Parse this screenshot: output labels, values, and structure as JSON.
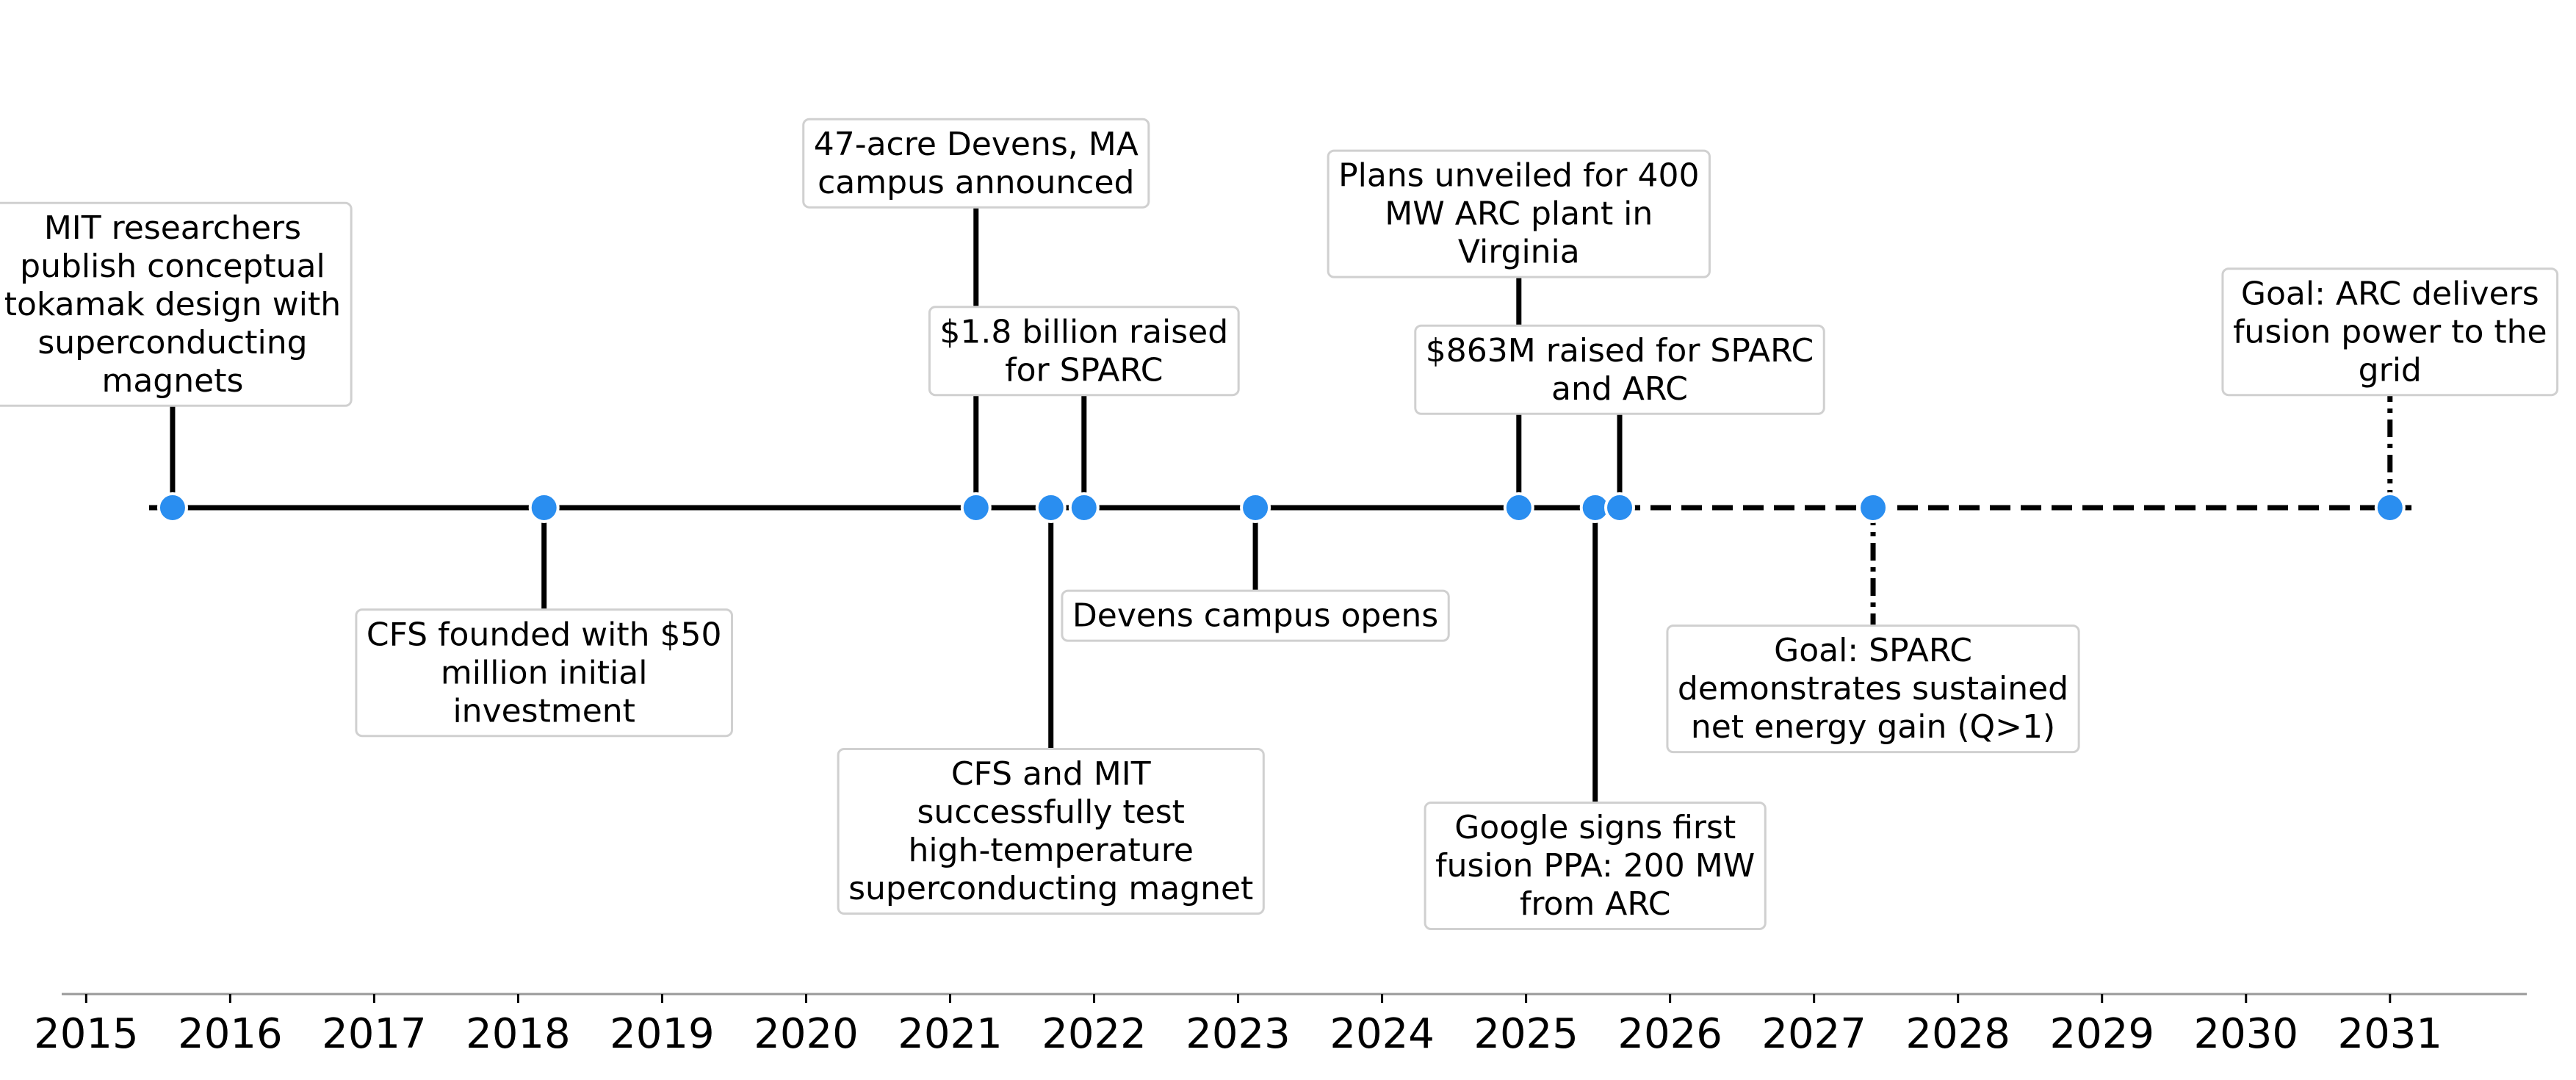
{
  "chart_data": {
    "type": "timeline",
    "title": "",
    "xlabel": "",
    "ylabel": "",
    "x_ticks": [
      "2015",
      "2016",
      "2017",
      "2018",
      "2019",
      "2020",
      "2021",
      "2022",
      "2023",
      "2024",
      "2025",
      "2026",
      "2027",
      "2028",
      "2029",
      "2030",
      "2031"
    ],
    "xlim": [
      2014.83,
      2031.95
    ],
    "grid": false,
    "colors": {
      "marker": "#2a8ef0",
      "marker_edge": "#ffffff",
      "line": "#000000",
      "box_border": "#d0d0d0",
      "axis": "#999999"
    },
    "events": [
      {
        "x": 2015.6,
        "text": [
          "MIT researchers",
          "publish conceptual",
          "tokamak design with",
          "superconducting",
          "magnets"
        ],
        "side": "above",
        "height": 1.9
      },
      {
        "x": 2018.18,
        "text": [
          "CFS founded with $50",
          "million initial",
          "investment"
        ],
        "side": "below",
        "height": 1.9
      },
      {
        "x": 2021.18,
        "text": [
          "47-acre Devens, MA",
          "campus announced"
        ],
        "side": "above",
        "height": 5.6
      },
      {
        "x": 2021.7,
        "text": [
          "CFS and MIT",
          "successfully test",
          "high-temperature",
          "superconducting magnet"
        ],
        "side": "below",
        "height": 4.5
      },
      {
        "x": 2021.93,
        "text": [
          "$1.8 billion raised",
          "for SPARC"
        ],
        "side": "above",
        "height": 2.1
      },
      {
        "x": 2023.12,
        "text": [
          "Devens campus opens"
        ],
        "side": "below",
        "height": 1.55
      },
      {
        "x": 2024.95,
        "text": [
          "Plans unveiled for 400",
          "MW ARC plant in",
          "Virginia"
        ],
        "side": "above",
        "height": 4.3
      },
      {
        "x": 2025.48,
        "text": [
          "Google signs first",
          "fusion PPA: 200 MW",
          "from ARC"
        ],
        "side": "below",
        "height": 5.5
      },
      {
        "x": 2025.65,
        "text": [
          "$863M raised for SPARC",
          "and ARC"
        ],
        "side": "above",
        "height": 1.75
      },
      {
        "x": 2027.41,
        "text": [
          "Goal: SPARC",
          "demonstrates sustained",
          "net energy gain (Q>1)"
        ],
        "side": "below",
        "height": 2.2,
        "planned": true
      },
      {
        "x": 2031.0,
        "text": [
          "Goal: ARC delivers",
          "fusion power to the",
          "grid"
        ],
        "side": "above",
        "height": 2.1,
        "planned": true
      }
    ],
    "solid_until": 2025.65
  }
}
